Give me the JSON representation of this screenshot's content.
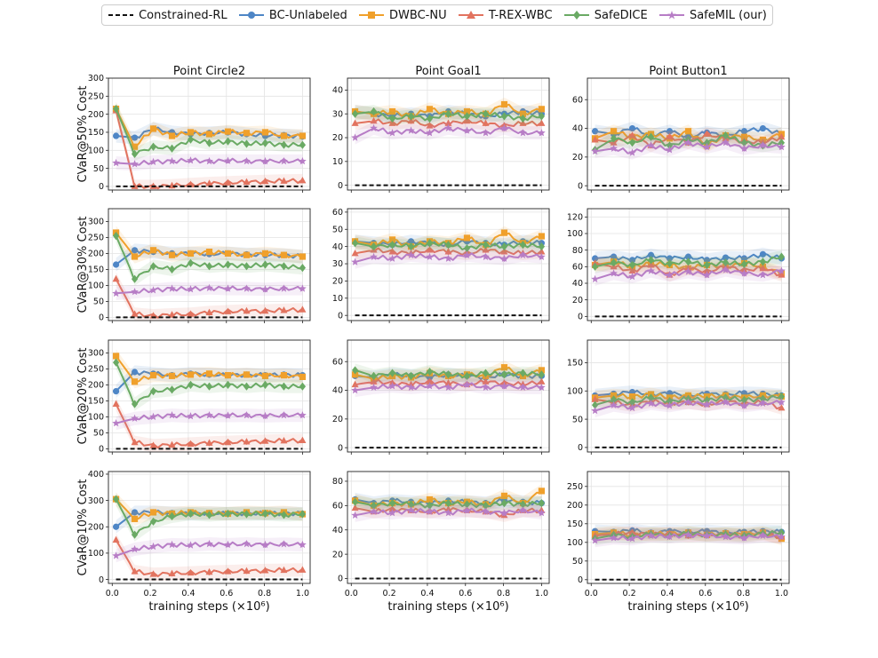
{
  "chart_data": {
    "type": "line",
    "legend": [
      {
        "name": "Constrained-RL",
        "color": "#111111",
        "marker": "none",
        "dashed": true
      },
      {
        "name": "BC-Unlabeled",
        "color": "#4e86c6",
        "marker": "circle"
      },
      {
        "name": "DWBC-NU",
        "color": "#f0a02b",
        "marker": "square"
      },
      {
        "name": "T-REX-WBC",
        "color": "#e2735f",
        "marker": "triangle"
      },
      {
        "name": "SafeDICE",
        "color": "#6aaa64",
        "marker": "diamond"
      },
      {
        "name": "SafeMIL (our)",
        "color": "#b77dc6",
        "marker": "star"
      }
    ],
    "legend_position": "top-center",
    "columns": [
      "Point Circle2",
      "Point Goal1",
      "Point Button1"
    ],
    "row_labels": [
      "CVaR@50% Cost",
      "CVaR@30% Cost",
      "CVaR@20% Cost",
      "CVaR@10% Cost"
    ],
    "xlabel": "training steps (×10⁶)",
    "x_ticks": [
      "0.0",
      "0.2",
      "0.4",
      "0.6",
      "0.8",
      "1.0"
    ],
    "xlim": [
      -0.02,
      1.04
    ],
    "panels": [
      {
        "row": 0,
        "col": 0,
        "ylim": [
          -10,
          300
        ],
        "yticks": [
          0,
          50,
          100,
          150,
          200,
          250,
          300
        ],
        "constrained": 0,
        "series": {
          "BC-Unlabeled": [
            140,
            135,
            160,
            150,
            145,
            148,
            150,
            145,
            140,
            142,
            138
          ],
          "DWBC-NU": [
            215,
            110,
            160,
            140,
            150,
            145,
            152,
            148,
            150,
            140,
            140
          ],
          "T-REX-WBC": [
            210,
            0,
            0,
            2,
            5,
            8,
            10,
            12,
            14,
            15,
            16
          ],
          "SafeDICE": [
            215,
            90,
            110,
            105,
            130,
            120,
            125,
            118,
            120,
            115,
            115
          ],
          "SafeMIL (our)": [
            65,
            62,
            68,
            70,
            72,
            70,
            71,
            70,
            70,
            70,
            70
          ]
        }
      },
      {
        "row": 0,
        "col": 1,
        "ylim": [
          -2,
          45
        ],
        "yticks": [
          0,
          10,
          20,
          30,
          40
        ],
        "constrained": 0,
        "series": {
          "BC-Unlabeled": [
            31,
            30,
            29,
            30,
            29,
            31,
            30,
            29,
            30,
            31,
            30
          ],
          "DWBC-NU": [
            31,
            30,
            31,
            29,
            32,
            30,
            31,
            30,
            34,
            30,
            32
          ],
          "T-REX-WBC": [
            26,
            27,
            26,
            27,
            25,
            26,
            27,
            26,
            25,
            26,
            26
          ],
          "SafeDICE": [
            30,
            31,
            28,
            29,
            28,
            30,
            29,
            30,
            29,
            28,
            29
          ],
          "SafeMIL (our)": [
            20,
            24,
            22,
            23,
            22,
            24,
            23,
            22,
            24,
            22,
            22
          ]
        }
      },
      {
        "row": 0,
        "col": 2,
        "ylim": [
          -3,
          75
        ],
        "yticks": [
          0,
          20,
          40,
          60
        ],
        "constrained": 0,
        "series": {
          "BC-Unlabeled": [
            38,
            36,
            40,
            35,
            38,
            34,
            37,
            35,
            38,
            40,
            36
          ],
          "DWBC-NU": [
            33,
            38,
            34,
            36,
            33,
            38,
            28,
            35,
            34,
            32,
            36
          ],
          "T-REX-WBC": [
            32,
            30,
            35,
            28,
            34,
            30,
            36,
            33,
            31,
            30,
            34
          ],
          "SafeDICE": [
            25,
            33,
            30,
            34,
            28,
            32,
            30,
            35,
            30,
            28,
            30
          ],
          "SafeMIL (our)": [
            24,
            26,
            23,
            28,
            25,
            30,
            27,
            30,
            26,
            28,
            27
          ]
        }
      },
      {
        "row": 1,
        "col": 0,
        "ylim": [
          -10,
          340
        ],
        "yticks": [
          0,
          50,
          100,
          150,
          200,
          250,
          300
        ],
        "constrained": 0,
        "series": {
          "BC-Unlabeled": [
            165,
            210,
            205,
            200,
            200,
            198,
            200,
            197,
            195,
            195,
            190
          ],
          "DWBC-NU": [
            265,
            190,
            210,
            195,
            200,
            205,
            200,
            195,
            200,
            195,
            190
          ],
          "T-REX-WBC": [
            120,
            10,
            5,
            8,
            10,
            15,
            18,
            20,
            20,
            22,
            24
          ],
          "SafeDICE": [
            255,
            120,
            160,
            150,
            170,
            160,
            165,
            160,
            165,
            160,
            155
          ],
          "SafeMIL (our)": [
            75,
            80,
            85,
            90,
            88,
            92,
            90,
            90,
            88,
            90,
            90
          ]
        }
      },
      {
        "row": 1,
        "col": 1,
        "ylim": [
          -3,
          62
        ],
        "yticks": [
          0,
          10,
          20,
          30,
          40,
          50,
          60
        ],
        "constrained": 0,
        "series": {
          "BC-Unlabeled": [
            43,
            42,
            41,
            43,
            42,
            41,
            43,
            42,
            41,
            43,
            42
          ],
          "DWBC-NU": [
            43,
            41,
            44,
            40,
            43,
            42,
            45,
            41,
            48,
            42,
            46
          ],
          "T-REX-WBC": [
            36,
            38,
            37,
            36,
            38,
            37,
            36,
            38,
            37,
            36,
            37
          ],
          "SafeDICE": [
            42,
            40,
            41,
            40,
            42,
            41,
            39,
            41,
            40,
            41,
            40
          ],
          "SafeMIL (our)": [
            31,
            34,
            33,
            35,
            34,
            33,
            35,
            34,
            33,
            35,
            34
          ]
        }
      },
      {
        "row": 1,
        "col": 2,
        "ylim": [
          -5,
          130
        ],
        "yticks": [
          0,
          20,
          40,
          60,
          80,
          100,
          120
        ],
        "constrained": 0,
        "series": {
          "BC-Unlabeled": [
            70,
            72,
            68,
            74,
            70,
            72,
            68,
            71,
            70,
            75,
            70
          ],
          "DWBC-NU": [
            62,
            66,
            60,
            64,
            62,
            58,
            62,
            60,
            64,
            60,
            52
          ],
          "T-REX-WBC": [
            64,
            60,
            55,
            62,
            50,
            58,
            54,
            60,
            56,
            58,
            50
          ],
          "SafeDICE": [
            60,
            65,
            62,
            68,
            64,
            66,
            62,
            65,
            63,
            66,
            72
          ],
          "SafeMIL (our)": [
            45,
            52,
            48,
            55,
            50,
            54,
            50,
            56,
            52,
            50,
            55
          ]
        }
      },
      {
        "row": 2,
        "col": 0,
        "ylim": [
          -10,
          340
        ],
        "yticks": [
          0,
          50,
          100,
          150,
          200,
          250,
          300
        ],
        "constrained": 0,
        "series": {
          "BC-Unlabeled": [
            180,
            240,
            235,
            230,
            235,
            232,
            230,
            232,
            230,
            232,
            230
          ],
          "DWBC-NU": [
            290,
            210,
            230,
            228,
            232,
            235,
            230,
            232,
            228,
            230,
            225
          ],
          "T-REX-WBC": [
            140,
            20,
            10,
            12,
            15,
            18,
            20,
            22,
            24,
            25,
            26
          ],
          "SafeDICE": [
            270,
            140,
            180,
            185,
            200,
            195,
            200,
            195,
            200,
            195,
            195
          ],
          "SafeMIL (our)": [
            80,
            95,
            100,
            105,
            102,
            105,
            104,
            105,
            103,
            105,
            105
          ]
        }
      },
      {
        "row": 2,
        "col": 1,
        "ylim": [
          -3,
          75
        ],
        "yticks": [
          0,
          20,
          40,
          60
        ],
        "constrained": 0,
        "series": {
          "BC-Unlabeled": [
            50,
            49,
            51,
            50,
            49,
            51,
            50,
            49,
            51,
            50,
            50
          ],
          "DWBC-NU": [
            51,
            48,
            50,
            49,
            52,
            50,
            51,
            50,
            56,
            50,
            54
          ],
          "T-REX-WBC": [
            44,
            46,
            45,
            44,
            46,
            45,
            44,
            46,
            45,
            44,
            46
          ],
          "SafeDICE": [
            54,
            50,
            52,
            50,
            53,
            51,
            50,
            52,
            51,
            52,
            51
          ],
          "SafeMIL (our)": [
            40,
            42,
            43,
            42,
            43,
            42,
            44,
            42,
            43,
            42,
            42
          ]
        }
      },
      {
        "row": 2,
        "col": 2,
        "ylim": [
          -8,
          190
        ],
        "yticks": [
          0,
          50,
          100,
          150
        ],
        "constrained": 0,
        "series": {
          "BC-Unlabeled": [
            92,
            95,
            98,
            94,
            96,
            92,
            95,
            94,
            96,
            95,
            92
          ],
          "DWBC-NU": [
            88,
            92,
            90,
            94,
            88,
            92,
            90,
            92,
            88,
            92,
            90
          ],
          "T-REX-WBC": [
            85,
            80,
            75,
            82,
            78,
            80,
            76,
            82,
            78,
            80,
            70
          ],
          "SafeDICE": [
            75,
            85,
            80,
            88,
            82,
            86,
            84,
            88,
            84,
            86,
            90
          ],
          "SafeMIL (our)": [
            65,
            75,
            70,
            78,
            74,
            80,
            76,
            80,
            74,
            78,
            80
          ]
        }
      },
      {
        "row": 3,
        "col": 0,
        "ylim": [
          -15,
          410
        ],
        "yticks": [
          0,
          100,
          200,
          300,
          400
        ],
        "constrained": 0,
        "series": {
          "BC-Unlabeled": [
            200,
            255,
            255,
            252,
            250,
            252,
            250,
            252,
            250,
            252,
            250
          ],
          "DWBC-NU": [
            305,
            230,
            255,
            250,
            255,
            252,
            250,
            255,
            252,
            255,
            248
          ],
          "T-REX-WBC": [
            150,
            30,
            20,
            22,
            25,
            28,
            30,
            32,
            34,
            35,
            36
          ],
          "SafeDICE": [
            305,
            170,
            220,
            240,
            250,
            245,
            250,
            248,
            250,
            245,
            248
          ],
          "SafeMIL (our)": [
            90,
            115,
            125,
            132,
            130,
            135,
            132,
            135,
            132,
            134,
            132
          ]
        }
      },
      {
        "row": 3,
        "col": 1,
        "ylim": [
          -4,
          88
        ],
        "yticks": [
          0,
          20,
          40,
          60,
          80
        ],
        "constrained": 0,
        "series": {
          "BC-Unlabeled": [
            65,
            62,
            64,
            63,
            62,
            64,
            63,
            62,
            64,
            63,
            62
          ],
          "DWBC-NU": [
            64,
            60,
            62,
            61,
            65,
            62,
            63,
            61,
            68,
            62,
            72
          ],
          "T-REX-WBC": [
            58,
            55,
            57,
            56,
            55,
            57,
            56,
            55,
            52,
            56,
            56
          ],
          "SafeDICE": [
            63,
            60,
            62,
            61,
            60,
            62,
            61,
            60,
            62,
            61,
            62
          ],
          "SafeMIL (our)": [
            52,
            55,
            54,
            56,
            55,
            54,
            56,
            55,
            54,
            56,
            54
          ]
        }
      },
      {
        "row": 3,
        "col": 2,
        "ylim": [
          -10,
          290
        ],
        "yticks": [
          0,
          50,
          100,
          150,
          200,
          250
        ],
        "constrained": 0,
        "series": {
          "BC-Unlabeled": [
            130,
            128,
            132,
            126,
            130,
            128,
            130,
            126,
            128,
            130,
            128
          ],
          "DWBC-NU": [
            122,
            126,
            120,
            124,
            122,
            126,
            120,
            124,
            122,
            126,
            110
          ],
          "T-REX-WBC": [
            118,
            122,
            126,
            120,
            124,
            118,
            122,
            120,
            118,
            122,
            115
          ],
          "SafeDICE": [
            110,
            120,
            115,
            122,
            118,
            124,
            120,
            122,
            118,
            124,
            126
          ],
          "SafeMIL (our)": [
            105,
            112,
            110,
            118,
            115,
            120,
            118,
            115,
            112,
            118,
            115
          ]
        }
      }
    ]
  }
}
